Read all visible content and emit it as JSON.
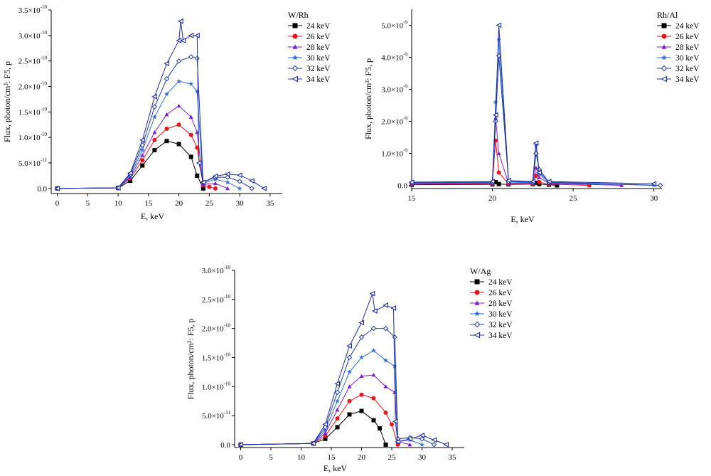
{
  "colors": {
    "24 keV": "#000000",
    "26 keV": "#e8161c",
    "28 keV": "#7b1fd2",
    "30 keV": "#2d6be4",
    "32 keV": "#1e3c9c",
    "34 keV": "#1e2da0"
  },
  "markers": {
    "24 keV": "square",
    "26 keV": "circle",
    "28 keV": "triangle",
    "30 keV": "star",
    "32 keV": "diamond-open",
    "34 keV": "left-triangle"
  },
  "chart_data": [
    {
      "type": "line",
      "legend_title": "W/Rh",
      "xlabel": "E, keV",
      "ylabel": "Flux, photon/cm²: F5, p",
      "xlim": [
        -1,
        37
      ],
      "ylim": [
        -0.1,
        3.5
      ],
      "y_exponent_note": "y values in units of 1e-10",
      "x_ticks": [
        "0",
        "5",
        "10",
        "15",
        "20",
        "25",
        "30",
        "35"
      ],
      "y_ticks": [
        {
          "base": "0.0",
          "exp": ""
        },
        {
          "base": "5.0×10",
          "exp": "-11"
        },
        {
          "base": "1.0×10",
          "exp": "-10"
        },
        {
          "base": "1.5×10",
          "exp": "-10"
        },
        {
          "base": "2.0×10",
          "exp": "-10"
        },
        {
          "base": "2.5×10",
          "exp": "-10"
        },
        {
          "base": "3.0×10",
          "exp": "-10"
        },
        {
          "base": "3.5×10",
          "exp": "-10"
        }
      ],
      "legend_placement": "top-right",
      "series": [
        {
          "name": "24 keV",
          "x": [
            0,
            10,
            12,
            14,
            16,
            18,
            20,
            22,
            23,
            24
          ],
          "y": [
            0,
            0.01,
            0.15,
            0.45,
            0.75,
            0.93,
            0.87,
            0.62,
            0.25,
            0
          ]
        },
        {
          "name": "26 keV",
          "x": [
            0,
            10,
            12,
            14,
            16,
            18,
            20,
            22,
            23,
            24,
            25,
            26
          ],
          "y": [
            0,
            0.01,
            0.2,
            0.55,
            0.95,
            1.17,
            1.25,
            1.05,
            0.8,
            0.06,
            0.03,
            0
          ]
        },
        {
          "name": "28 keV",
          "x": [
            0,
            10,
            12,
            14,
            16,
            18,
            20,
            22,
            23,
            24,
            26,
            28
          ],
          "y": [
            0,
            0.01,
            0.22,
            0.65,
            1.1,
            1.45,
            1.62,
            1.4,
            1.1,
            0.08,
            0.1,
            0
          ]
        },
        {
          "name": "30 keV",
          "x": [
            0,
            10,
            12,
            14,
            16,
            18,
            20,
            22,
            23,
            24,
            26,
            28,
            30
          ],
          "y": [
            0,
            0.01,
            0.25,
            0.75,
            1.4,
            1.85,
            2.1,
            2.05,
            1.9,
            0.1,
            0.18,
            0.12,
            0
          ]
        },
        {
          "name": "32 keV",
          "x": [
            0,
            10,
            12,
            14,
            16,
            18,
            20,
            22,
            23,
            24,
            26,
            28,
            30,
            32
          ],
          "y": [
            0,
            0.01,
            0.28,
            0.85,
            1.6,
            2.15,
            2.5,
            2.58,
            2.55,
            0.12,
            0.22,
            0.22,
            0.14,
            0
          ]
        },
        {
          "name": "34 keV",
          "x": [
            0,
            10,
            12,
            14,
            16,
            18,
            20,
            20.3,
            20.7,
            22,
            23,
            23.3,
            24,
            26,
            28,
            30,
            32,
            34
          ],
          "y": [
            0,
            0.01,
            0.3,
            0.95,
            1.8,
            2.45,
            2.9,
            3.28,
            2.9,
            3.0,
            3.0,
            0.5,
            0.12,
            0.24,
            0.28,
            0.26,
            0.15,
            0
          ]
        }
      ]
    },
    {
      "type": "line",
      "legend_title": "Rh/Al",
      "xlabel": "E, keV",
      "ylabel": "Flux, photon/cm²: F5, p",
      "xlim": [
        15,
        30.5
      ],
      "ylim": [
        -0.1,
        5.5
      ],
      "y_exponent_note": "y values in units of 1e-9",
      "x_ticks": [
        "15",
        "20",
        "25",
        "30"
      ],
      "y_ticks": [
        {
          "base": "0.0",
          "exp": ""
        },
        {
          "base": "1.0×10",
          "exp": "-9"
        },
        {
          "base": "2.0×10",
          "exp": "-9"
        },
        {
          "base": "3.0×10",
          "exp": "-9"
        },
        {
          "base": "4.0×10",
          "exp": "-9"
        },
        {
          "base": "5.0×10",
          "exp": "-9"
        }
      ],
      "legend_placement": "top-right",
      "series": [
        {
          "name": "24 keV",
          "x": [
            15,
            20.0,
            20.2,
            20.4,
            21,
            22.5,
            22.7,
            22.9,
            23.5,
            24
          ],
          "y": [
            0.02,
            0.03,
            0.1,
            0.04,
            0.03,
            0.04,
            0.08,
            0.04,
            0.02,
            0
          ]
        },
        {
          "name": "26 keV",
          "x": [
            15,
            20.0,
            20.2,
            20.4,
            21,
            22.5,
            22.7,
            22.9,
            23.5,
            26
          ],
          "y": [
            0.03,
            0.05,
            1.4,
            0.4,
            0.05,
            0.05,
            0.3,
            0.1,
            0.04,
            0
          ]
        },
        {
          "name": "28 keV",
          "x": [
            15,
            20.0,
            20.2,
            20.4,
            21,
            22.5,
            22.7,
            22.9,
            23.5,
            28
          ],
          "y": [
            0.05,
            0.06,
            2.1,
            1.0,
            0.06,
            0.06,
            0.55,
            0.25,
            0.06,
            0
          ]
        },
        {
          "name": "30 keV",
          "x": [
            15,
            20.0,
            20.2,
            20.4,
            21,
            22.5,
            22.7,
            22.9,
            23.5,
            30
          ],
          "y": [
            0.06,
            0.08,
            2.6,
            4.55,
            0.1,
            0.08,
            1.25,
            0.35,
            0.08,
            0
          ]
        },
        {
          "name": "32 keV",
          "x": [
            15,
            20.0,
            20.2,
            20.4,
            21,
            22.5,
            22.7,
            22.9,
            23.5,
            30.4
          ],
          "y": [
            0.08,
            0.1,
            2.0,
            4.05,
            0.12,
            0.1,
            1.0,
            0.5,
            0.1,
            0
          ]
        },
        {
          "name": "34 keV",
          "x": [
            15,
            20.0,
            20.2,
            20.4,
            21,
            22.5,
            22.7,
            22.9,
            23.5,
            30
          ],
          "y": [
            0.1,
            0.12,
            2.2,
            5.0,
            0.15,
            0.12,
            1.32,
            0.4,
            0.12,
            0.05
          ]
        }
      ]
    },
    {
      "type": "line",
      "legend_title": "W/Ag",
      "xlabel": "E, keV",
      "ylabel": "Flux, photon/cm²: F5, p",
      "xlim": [
        -1,
        37
      ],
      "ylim": [
        -0.05,
        3.0
      ],
      "y_exponent_note": "y values in units of 1e-10",
      "x_ticks": [
        "0",
        "5",
        "10",
        "15",
        "20",
        "25",
        "30",
        "35"
      ],
      "y_ticks": [
        {
          "base": "0.0",
          "exp": ""
        },
        {
          "base": "5.0×10",
          "exp": "-11"
        },
        {
          "base": "1.0×10",
          "exp": "-10"
        },
        {
          "base": "1.5×10",
          "exp": "-10"
        },
        {
          "base": "2.0×10",
          "exp": "-10"
        },
        {
          "base": "2.5×10",
          "exp": "-10"
        },
        {
          "base": "3.0×10",
          "exp": "-10"
        }
      ],
      "legend_placement": "top-right",
      "series": [
        {
          "name": "24 keV",
          "x": [
            0,
            12,
            14,
            16,
            18,
            20,
            22,
            23,
            24
          ],
          "y": [
            0,
            0.02,
            0.1,
            0.3,
            0.52,
            0.58,
            0.42,
            0.28,
            0
          ]
        },
        {
          "name": "26 keV",
          "x": [
            0,
            12,
            14,
            16,
            18,
            20,
            22,
            24,
            25,
            26
          ],
          "y": [
            0,
            0.02,
            0.15,
            0.45,
            0.75,
            0.86,
            0.8,
            0.55,
            0.35,
            0
          ]
        },
        {
          "name": "28 keV",
          "x": [
            0,
            12,
            14,
            16,
            18,
            20,
            22,
            24,
            25.5,
            26,
            28
          ],
          "y": [
            0,
            0.02,
            0.2,
            0.6,
            1.0,
            1.18,
            1.2,
            1.0,
            0.9,
            0.05,
            0
          ]
        },
        {
          "name": "30 keV",
          "x": [
            0,
            12,
            14,
            16,
            18,
            20,
            22,
            24,
            25.5,
            26,
            28,
            30
          ],
          "y": [
            0,
            0.02,
            0.25,
            0.75,
            1.25,
            1.5,
            1.62,
            1.45,
            1.35,
            0.05,
            0.08,
            0
          ]
        },
        {
          "name": "32 keV",
          "x": [
            0,
            12,
            14,
            16,
            18,
            20,
            22,
            24,
            25.5,
            26,
            28,
            30,
            32
          ],
          "y": [
            0,
            0.02,
            0.3,
            0.9,
            1.5,
            1.85,
            2.0,
            2.0,
            1.85,
            0.1,
            0.12,
            0.1,
            0
          ]
        },
        {
          "name": "34 keV",
          "x": [
            0,
            12,
            14,
            16,
            18,
            20,
            21.8,
            22.2,
            24,
            25.3,
            25.6,
            26,
            28,
            30,
            32,
            34
          ],
          "y": [
            0,
            0.02,
            0.35,
            1.05,
            1.7,
            2.1,
            2.6,
            2.3,
            2.4,
            2.35,
            0.4,
            0.05,
            0.1,
            0.16,
            0.08,
            0
          ]
        }
      ]
    }
  ]
}
